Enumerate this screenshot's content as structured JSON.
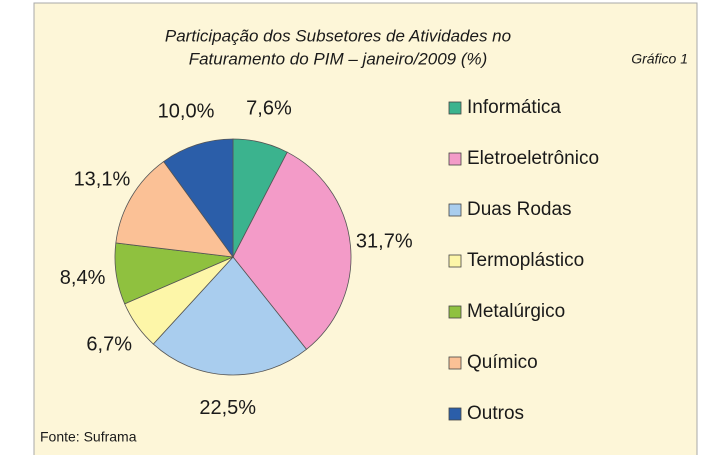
{
  "chart_data": {
    "type": "pie",
    "title": [
      "Participação dos Subsetores de Atividades no",
      "Faturamento do PIM – janeiro/2009 (%)"
    ],
    "annotation": "Gráfico 1",
    "source": "Fonte: Suframa",
    "categories": [
      "Informática",
      "Eletroeletrônico",
      "Duas Rodas",
      "Termoplástico",
      "Metalúrgico",
      "Químico",
      "Outros"
    ],
    "values": [
      7.6,
      31.7,
      22.5,
      6.7,
      8.4,
      13.1,
      10.0
    ],
    "value_labels": [
      "7,6%",
      "31,7%",
      "22,5%",
      "6,7%",
      "8,4%",
      "13,1%",
      "10,0%"
    ],
    "colors": [
      "#3bb38e",
      "#f39bc8",
      "#a9cdee",
      "#fdf6a8",
      "#8fc13f",
      "#fbc196",
      "#2b5ea9"
    ],
    "legend": "right"
  }
}
